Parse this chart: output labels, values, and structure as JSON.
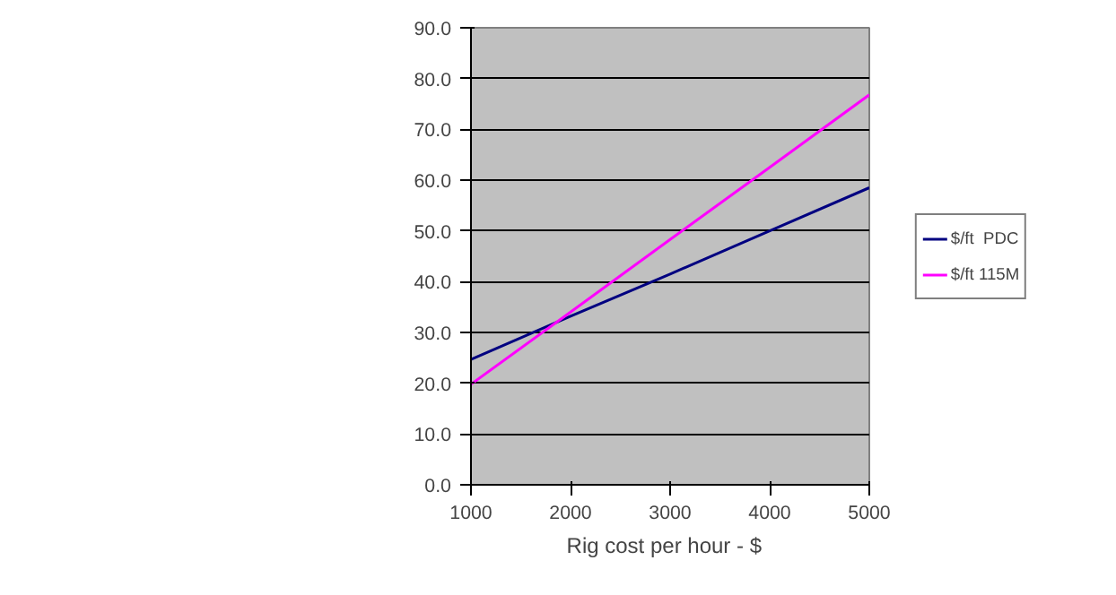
{
  "chart_data": {
    "type": "line",
    "xlabel": "Rig cost per hour  -  $",
    "x": [
      1000,
      2000,
      3000,
      4000,
      5000
    ],
    "series": [
      {
        "name": "$/ft  PDC",
        "color": "#000080",
        "values": [
          24.7,
          33.2,
          41.5,
          50.0,
          58.5
        ]
      },
      {
        "name": "$/ft 115M",
        "color": "#ff00ff",
        "values": [
          19.8,
          34.0,
          48.3,
          62.5,
          76.8
        ]
      }
    ],
    "xlim": [
      1000,
      5000
    ],
    "xticks": [
      1000,
      2000,
      3000,
      4000,
      5000
    ],
    "ylim": [
      0,
      90
    ],
    "yticks": [
      {
        "value": 0,
        "label": "0.0"
      },
      {
        "value": 10,
        "label": "10.0"
      },
      {
        "value": 20,
        "label": "20.0"
      },
      {
        "value": 30,
        "label": "30.0"
      },
      {
        "value": 40,
        "label": "40.0"
      },
      {
        "value": 50,
        "label": "50.0"
      },
      {
        "value": 60,
        "label": "60.0"
      },
      {
        "value": 70,
        "label": "70.0"
      },
      {
        "value": 80,
        "label": "80.0"
      },
      {
        "value": 90,
        "label": "90.0"
      }
    ],
    "grid": "y",
    "legend": "right",
    "marker": "none",
    "line_style": "solid"
  }
}
